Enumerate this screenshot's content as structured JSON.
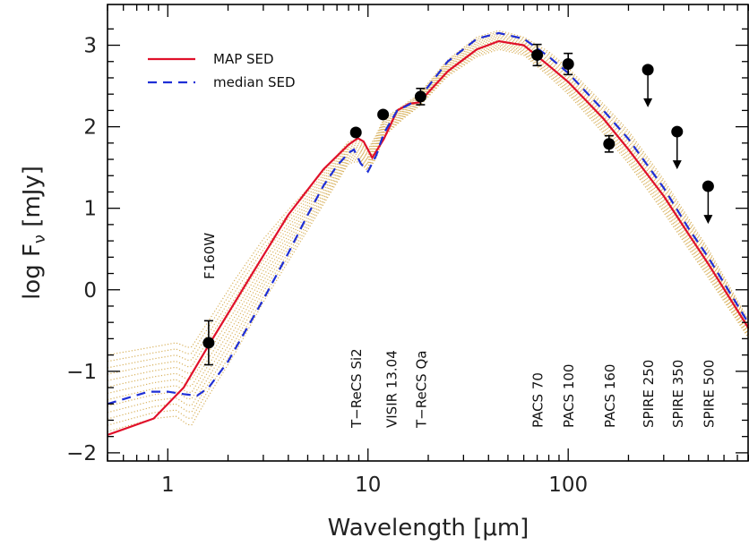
{
  "chart_data": {
    "type": "line",
    "xlabel": "Wavelength [μm]",
    "ylabel": "log F_ν [mJy]",
    "x_scale": "log",
    "xlim": [
      0.5,
      800
    ],
    "ylim": [
      -2.1,
      3.5
    ],
    "x_ticks": [
      1,
      10,
      100
    ],
    "x_tick_labels": [
      "1",
      "10",
      "100"
    ],
    "y_ticks": [
      -2,
      -1,
      0,
      1,
      2,
      3
    ],
    "y_tick_labels": [
      "−2",
      "−1",
      "0",
      "1",
      "2",
      "3"
    ],
    "legend": {
      "position": "top-left",
      "entries": [
        {
          "label": "MAP SED",
          "color": "#e0102a",
          "style": "solid"
        },
        {
          "label": "median SED",
          "color": "#1f2fd6",
          "style": "dashed"
        }
      ]
    },
    "band_labels": [
      {
        "text": "F160W",
        "x": 1.6
      },
      {
        "text": "T−ReCS Si2",
        "x": 8.7
      },
      {
        "text": "VISIR 13.04",
        "x": 13.04
      },
      {
        "text": "T−ReCS Qa",
        "x": 18.3
      },
      {
        "text": "PACS 70",
        "x": 70
      },
      {
        "text": "PACS 100",
        "x": 100
      },
      {
        "text": "PACS 160",
        "x": 160
      },
      {
        "text": "SPIRE 250",
        "x": 250
      },
      {
        "text": "SPIRE 350",
        "x": 350
      },
      {
        "text": "SPIRE 500",
        "x": 500
      }
    ],
    "series": [
      {
        "name": "MAP SED",
        "color": "#e0102a",
        "style": "solid",
        "x": [
          0.5,
          0.85,
          1.2,
          1.6,
          2.5,
          4,
          6,
          8,
          8.9,
          9.5,
          10.5,
          12,
          14,
          16,
          18,
          25,
          35,
          45,
          60,
          80,
          100,
          150,
          200,
          300,
          400,
          500,
          800
        ],
        "y": [
          -1.78,
          -1.58,
          -1.2,
          -0.68,
          0.1,
          0.92,
          1.48,
          1.78,
          1.86,
          1.82,
          1.62,
          1.85,
          2.2,
          2.28,
          2.3,
          2.68,
          2.95,
          3.05,
          3.0,
          2.75,
          2.55,
          2.1,
          1.72,
          1.15,
          0.68,
          0.32,
          -0.48
        ]
      },
      {
        "name": "median SED",
        "color": "#1f2fd6",
        "style": "dashed",
        "x": [
          0.5,
          0.8,
          1.0,
          1.2,
          1.4,
          1.6,
          2.0,
          3,
          4,
          5,
          6,
          7,
          8,
          8.5,
          9.2,
          10,
          11,
          12,
          14,
          16,
          18,
          25,
          35,
          45,
          60,
          80,
          100,
          150,
          200,
          300,
          400,
          500,
          800
        ],
        "y": [
          -1.4,
          -1.25,
          -1.25,
          -1.28,
          -1.3,
          -1.2,
          -0.88,
          -0.12,
          0.45,
          0.92,
          1.28,
          1.52,
          1.68,
          1.72,
          1.55,
          1.45,
          1.65,
          1.92,
          2.2,
          2.27,
          2.35,
          2.8,
          3.08,
          3.15,
          3.08,
          2.86,
          2.66,
          2.2,
          1.85,
          1.25,
          0.75,
          0.4,
          -0.42
        ]
      }
    ],
    "model_envelope": {
      "color": "#d4a84a",
      "style": "dotted",
      "lower": {
        "x": [
          0.5,
          0.85,
          1.1,
          1.3,
          1.6,
          2.2,
          3,
          4,
          6,
          8,
          9,
          10,
          11,
          12,
          15,
          18,
          25,
          35,
          45,
          60,
          80,
          100,
          150,
          200,
          300,
          500,
          800
        ],
        "y": [
          -1.74,
          -1.58,
          -1.55,
          -1.68,
          -1.3,
          -0.75,
          -0.15,
          0.35,
          1.05,
          1.55,
          1.58,
          1.45,
          1.62,
          1.88,
          2.1,
          2.25,
          2.62,
          2.86,
          2.95,
          2.88,
          2.62,
          2.4,
          1.92,
          1.55,
          0.95,
          0.15,
          -0.6
        ]
      },
      "upper": {
        "x": [
          0.5,
          0.85,
          1.1,
          1.3,
          1.6,
          2.2,
          3,
          4,
          6,
          8,
          9,
          10,
          11,
          12,
          15,
          18,
          25,
          35,
          45,
          60,
          80,
          100,
          150,
          200,
          300,
          500,
          800
        ],
        "y": [
          -0.8,
          -0.7,
          -0.65,
          -0.72,
          -0.38,
          0.15,
          0.62,
          0.98,
          1.45,
          1.82,
          1.85,
          1.72,
          1.9,
          2.1,
          2.26,
          2.4,
          2.82,
          3.1,
          3.18,
          3.1,
          2.92,
          2.72,
          2.28,
          1.95,
          1.35,
          0.5,
          -0.38
        ]
      }
    },
    "observations": [
      {
        "x": 1.6,
        "y": -0.65,
        "err": 0.27,
        "upper_limit": false
      },
      {
        "x": 8.7,
        "y": 1.93,
        "err": 0.04,
        "upper_limit": false
      },
      {
        "x": 11.9,
        "y": 2.15,
        "err": 0.0,
        "upper_limit": false
      },
      {
        "x": 18.3,
        "y": 2.37,
        "err": 0.1,
        "upper_limit": false
      },
      {
        "x": 70,
        "y": 2.88,
        "err": 0.13,
        "upper_limit": false
      },
      {
        "x": 100,
        "y": 2.77,
        "err": 0.13,
        "upper_limit": false
      },
      {
        "x": 160,
        "y": 1.79,
        "err": 0.1,
        "upper_limit": false
      },
      {
        "x": 250,
        "y": 2.7,
        "err": 0,
        "upper_limit": true
      },
      {
        "x": 350,
        "y": 1.94,
        "err": 0,
        "upper_limit": true
      },
      {
        "x": 500,
        "y": 1.27,
        "err": 0,
        "upper_limit": true
      }
    ]
  }
}
